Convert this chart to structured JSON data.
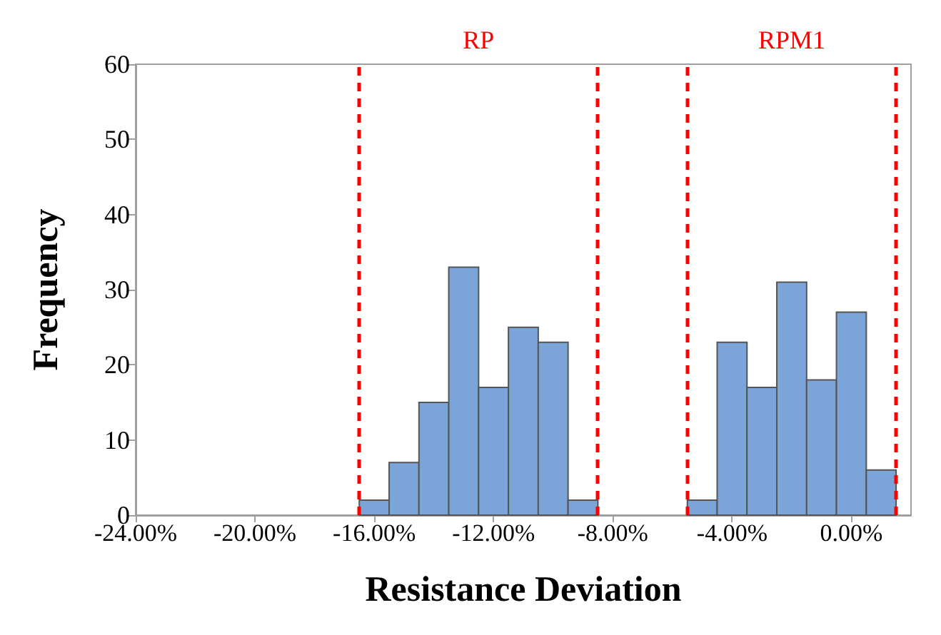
{
  "chart_data": {
    "type": "histogram",
    "xlabel": "Resistance Deviation",
    "ylabel": "Frequency",
    "bins": [
      -16.5,
      -15.5,
      -14.5,
      -13.5,
      -12.5,
      -11.5,
      -10.5,
      -9.5,
      -8.5,
      -7.5,
      -6.5,
      -5.5,
      -4.5,
      -3.5,
      -2.5,
      -1.5,
      -0.5,
      0.5,
      1.5
    ],
    "values": [
      2,
      7,
      15,
      33,
      17,
      25,
      23,
      2,
      0,
      0,
      0,
      2,
      23,
      17,
      31,
      18,
      27,
      6
    ],
    "color": "#7ba5d8",
    "xlim": [
      -24,
      2
    ],
    "xticks": [
      {
        "value": -24,
        "label": "-24.00%"
      },
      {
        "value": -20,
        "label": "-20.00%"
      },
      {
        "value": -16,
        "label": "-16.00%"
      },
      {
        "value": -12,
        "label": "-12.00%"
      },
      {
        "value": -8,
        "label": "-8.00%"
      },
      {
        "value": -4,
        "label": "-4.00%"
      },
      {
        "value": 0,
        "label": "0.00%"
      }
    ],
    "ylim": [
      0,
      60
    ],
    "yticks": [
      0,
      10,
      20,
      30,
      40,
      50,
      60
    ],
    "ref_lines": [
      {
        "axis": "x",
        "value": -16.5,
        "color": "#ff0000",
        "line_style": "dashed"
      },
      {
        "axis": "x",
        "value": -8.5,
        "color": "#ff0000",
        "line_style": "dashed"
      },
      {
        "axis": "x",
        "value": -5.5,
        "color": "#ff0000",
        "line_style": "dashed"
      },
      {
        "axis": "x",
        "value": 1.5,
        "color": "#ff0000",
        "line_style": "dashed"
      }
    ],
    "annotations": [
      "RP",
      "RPM1"
    ],
    "grid": false
  }
}
